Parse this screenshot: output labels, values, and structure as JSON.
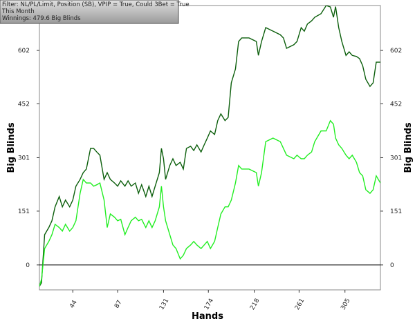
{
  "chart_data": {
    "type": "line",
    "filter_lines": [
      "Filter: NL/PL/Limit, Position (SB), VPIP = True, Could 3Bet = True",
      "This Month",
      "Winnings: 479.6 Big Blinds"
    ],
    "xlabel": "Hands",
    "ylabel": "Big Blinds",
    "y2label": "Big Blinds",
    "x": [
      12,
      14,
      17,
      21,
      24,
      27,
      31,
      34,
      37,
      41,
      44,
      47,
      51,
      54,
      57,
      61,
      64,
      67,
      70,
      74,
      77,
      80,
      84,
      87,
      90,
      94,
      97,
      100,
      104,
      107,
      110,
      114,
      117,
      120,
      123,
      127,
      129,
      131,
      133,
      137,
      140,
      143,
      147,
      150,
      153,
      157,
      160,
      163,
      167,
      170,
      173,
      176,
      180,
      183,
      186,
      190,
      193,
      196,
      200,
      203,
      206,
      213,
      220,
      222,
      225,
      229,
      236,
      243,
      246,
      249,
      256,
      259,
      263,
      266,
      269,
      273,
      276,
      282,
      287,
      291,
      294,
      296,
      299,
      302,
      306,
      309,
      312,
      316,
      319,
      322,
      325,
      329,
      332,
      335,
      339
    ],
    "series": [
      {
        "color": "#0b5e0b",
        "values": [
          -60,
          -50,
          85,
          105,
          124,
          163,
          192,
          163,
          182,
          163,
          182,
          221,
          240,
          259,
          269,
          327,
          327,
          317,
          308,
          240,
          259,
          240,
          230,
          221,
          236,
          221,
          236,
          221,
          230,
          201,
          225,
          192,
          221,
          192,
          221,
          259,
          327,
          298,
          240,
          279,
          298,
          279,
          288,
          269,
          327,
          333,
          321,
          337,
          317,
          337,
          356,
          376,
          366,
          405,
          424,
          405,
          414,
          511,
          550,
          627,
          637,
          637,
          627,
          588,
          627,
          666,
          656,
          646,
          637,
          608,
          618,
          627,
          666,
          656,
          676,
          685,
          695,
          705,
          728,
          724,
          695,
          725,
          666,
          627,
          588,
          598,
          588,
          585,
          579,
          559,
          521,
          501,
          511,
          569,
          569
        ]
      },
      {
        "color": "#22ee22",
        "values": [
          -60,
          -40,
          46,
          66,
          85,
          114,
          105,
          95,
          114,
          95,
          105,
          124,
          201,
          240,
          230,
          230,
          221,
          225,
          230,
          182,
          105,
          143,
          134,
          124,
          128,
          85,
          105,
          124,
          134,
          124,
          128,
          105,
          124,
          105,
          124,
          163,
          221,
          163,
          124,
          85,
          56,
          46,
          17,
          27,
          46,
          56,
          66,
          56,
          46,
          56,
          66,
          46,
          66,
          105,
          143,
          163,
          163,
          182,
          230,
          279,
          269,
          269,
          259,
          221,
          259,
          346,
          356,
          346,
          327,
          308,
          298,
          308,
          298,
          298,
          308,
          317,
          346,
          376,
          376,
          405,
          395,
          356,
          337,
          327,
          308,
          298,
          308,
          288,
          259,
          250,
          211,
          201,
          211,
          250,
          230
        ]
      }
    ],
    "xlim": [
      12,
      339
    ],
    "xticks": [
      44,
      87,
      131,
      174,
      218,
      261,
      305
    ],
    "ylim": [
      -70,
      728
    ],
    "yticks": [
      0,
      151,
      301,
      452,
      602
    ]
  }
}
